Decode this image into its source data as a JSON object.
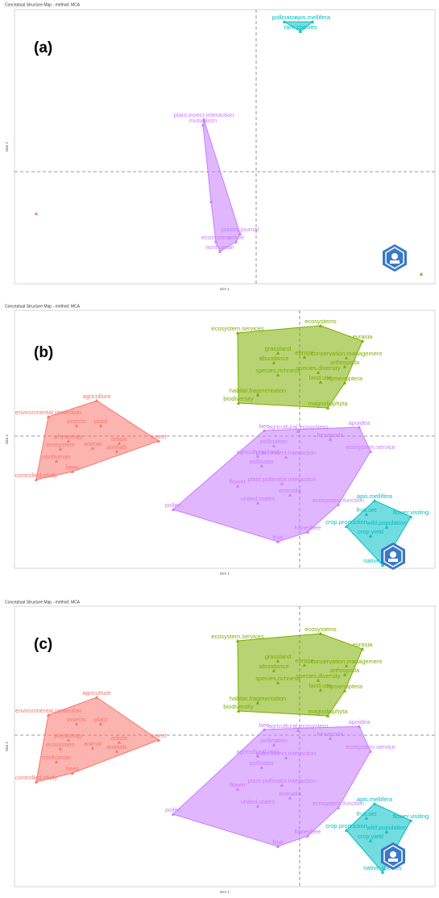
{
  "chart_data": [
    {
      "type": "scatter",
      "panel_label": "(a)",
      "title": "Conceptual Structure Map - method: MCA",
      "x_label": "Dim 1",
      "y_label": "Dim 2",
      "xlim": [
        -3.0,
        2.22
      ],
      "ylim": [
        -1.39,
        2.01
      ],
      "series": [
        {
          "color": "#c77cff",
          "x": [
            -0.65,
            -0.66,
            -0.56,
            -0.2,
            -0.25,
            -0.5,
            -0.45
          ],
          "y": [
            0.65,
            0.58,
            -0.37,
            -0.77,
            -0.87,
            -0.87,
            -0.99
          ],
          "labels": [
            "plant.insect.interaction",
            "mutualism",
            null,
            "priority.journal",
            "article",
            "ecosystem",
            "nonhuman"
          ]
        },
        {
          "color": "#00bfc4",
          "x": [
            0.35,
            0.7,
            0.55
          ],
          "y": [
            1.86,
            1.86,
            1.74
          ],
          "labels": [
            "pollinator",
            "apis.mellifera",
            "rare.species"
          ]
        },
        {
          "color": "#f8766d",
          "x": [
            -2.73
          ],
          "y": [
            -0.52
          ],
          "labels": [
            null
          ]
        },
        {
          "color": "#7cae00",
          "x": [
            2.05
          ],
          "y": [
            -1.27
          ],
          "labels": [
            null
          ]
        }
      ]
    },
    {
      "type": "scatter",
      "panel_label": "(b)",
      "title": "Conceptual Structure Map - method: MCA",
      "x_label": "Dim 1",
      "y_label": "Dim 2",
      "xlim": [
        -3.54,
        1.68
      ],
      "ylim": [
        -1.64,
        1.56
      ],
      "series": [
        {
          "color": "#7cae00",
          "x": [
            -0.77,
            0.26,
            0.78,
            0.58,
            0.56,
            -0.27,
            0.06,
            -0.32,
            0.23,
            -0.27,
            0.26,
            0.56,
            -0.52,
            -0.76,
            0.35
          ],
          "y": [
            1.28,
            1.37,
            1.18,
            0.97,
            0.86,
            1.03,
            0.98,
            0.91,
            0.79,
            0.76,
            0.67,
            0.66,
            0.51,
            0.41,
            0.35
          ],
          "labels": [
            "ecosystem.services",
            "ecosystems",
            "eurasia",
            "conservation.management",
            "arthropoda",
            "grassland",
            "europe",
            "abundance",
            "species.diversity",
            "species.richness",
            "land.use",
            "hymenoptera",
            "habitat.fragmentation",
            "biodiversity",
            "magnoliophyta"
          ]
        },
        {
          "color": "#f8766d",
          "x": [
            -2.52,
            -3.12,
            -2.77,
            -2.47,
            -1.75,
            -2.87,
            -2.24,
            -2.97,
            -2.57,
            -2.27,
            -3.02,
            -3.27,
            -2.82
          ],
          "y": [
            0.44,
            0.24,
            0.13,
            0.13,
            -0.06,
            -0.06,
            -0.09,
            -0.16,
            -0.15,
            -0.19,
            -0.31,
            -0.54,
            -0.44
          ],
          "labels": [
            "agriculture",
            "environmental.protection",
            "insects",
            "plant",
            "insect",
            "physiology",
            "article",
            "ecosystem",
            "animal",
            "animals",
            "nonhuman",
            "controlled.study",
            "bees"
          ]
        },
        {
          "color": "#c77cff",
          "x": [
            -0.44,
            -0.02,
            0.74,
            0.38,
            -0.32,
            0.88,
            -0.52,
            -0.17,
            -0.47,
            -0.22,
            -0.77,
            -0.12,
            -0.52,
            -1.57,
            0.48,
            0.1,
            -0.27
          ],
          "y": [
            0.07,
            0.06,
            0.11,
            -0.04,
            -0.12,
            -0.19,
            -0.25,
            -0.26,
            -0.37,
            -0.59,
            -0.62,
            -0.73,
            -0.83,
            -0.91,
            -0.85,
            -1.19,
            -1.31
          ],
          "labels": [
            "bee",
            "agricultural.ecosystem",
            "apoidea",
            "hexapoda",
            "pollination",
            "ecosystem.service",
            "agricultural.land",
            "plant.insect.interaction",
            "pollinator",
            "plant.pollinator.interaction",
            "flower",
            "animalia",
            "united.states",
            "pollen",
            "ecosystem.function",
            "honeybee",
            "fruit"
          ]
        },
        {
          "color": "#00bfc4",
          "x": [
            0.93,
            1.38,
            0.83,
            0.58,
            1.08,
            0.88,
            1.03
          ],
          "y": [
            -0.8,
            -1.0,
            -0.97,
            -1.12,
            -1.13,
            -1.24,
            -1.6
          ],
          "labels": [
            "apis.mellifera",
            "flower.visiting",
            "fruit.set",
            "crop.production",
            "wild.population",
            "crop.yield",
            "native.species"
          ]
        }
      ]
    },
    {
      "type": "scatter",
      "panel_label": "(c)",
      "title": "Conceptual Structure Map - method: MCA",
      "x_label": "Dim 1",
      "y_label": "Dim 2",
      "xlim": [
        -3.54,
        1.68
      ],
      "ylim": [
        -1.88,
        1.6
      ],
      "series": [
        {
          "color": "#7cae00",
          "x": [
            -0.77,
            0.26,
            0.78,
            0.58,
            0.56,
            -0.27,
            0.06,
            -0.32,
            0.23,
            -0.27,
            0.26,
            0.56,
            -0.52,
            -0.76,
            0.35
          ],
          "y": [
            1.17,
            1.26,
            1.07,
            0.86,
            0.75,
            0.92,
            0.87,
            0.8,
            0.68,
            0.65,
            0.56,
            0.55,
            0.4,
            0.3,
            0.24
          ],
          "labels": [
            "ecosystem.services",
            "ecosystems",
            "eurasia",
            "conservation.management",
            "arthropoda",
            "grassland",
            "europe",
            "abundance",
            "species.diversity",
            "species.richness",
            "land.use",
            "hymenoptera",
            "habitat.fragmentation",
            "biodiversity",
            "magnoliophyta"
          ]
        },
        {
          "color": "#f8766d",
          "x": [
            -2.52,
            -3.12,
            -2.77,
            -2.47,
            -1.75,
            -2.87,
            -2.24,
            -2.97,
            -2.57,
            -2.27,
            -3.02,
            -3.27,
            -2.82
          ],
          "y": [
            0.47,
            0.25,
            0.14,
            0.14,
            -0.06,
            -0.06,
            -0.09,
            -0.17,
            -0.16,
            -0.2,
            -0.33,
            -0.58,
            -0.47
          ],
          "labels": [
            "agriculture",
            "environmental.protection",
            "insects",
            "plant",
            "insect",
            "physiology",
            "article",
            "ecosystem",
            "animal",
            "animals",
            "nonhuman",
            "controlled.study",
            "bees"
          ]
        },
        {
          "color": "#c77cff",
          "x": [
            -0.44,
            -0.02,
            0.74,
            0.38,
            -0.32,
            0.88,
            -0.52,
            -0.17,
            -0.47,
            -0.22,
            -0.77,
            -0.12,
            -0.52,
            -1.57,
            0.48,
            0.1,
            -0.27
          ],
          "y": [
            0.07,
            0.06,
            0.11,
            -0.04,
            -0.12,
            -0.2,
            -0.26,
            -0.28,
            -0.4,
            -0.62,
            -0.67,
            -0.78,
            -0.88,
            -0.98,
            -0.9,
            -1.25,
            -1.38
          ],
          "labels": [
            "bee",
            "agricultural.ecosystem",
            "apoidea",
            "hexapoda",
            "pollination",
            "ecosystem.service",
            "agricultural.land",
            "plant.insect.interaction",
            "pollinator",
            "plant.pollinator.interaction",
            "flower",
            "animalia",
            "united.states",
            "pollen",
            "ecosystem.function",
            "honeybee",
            "fruit"
          ]
        },
        {
          "color": "#00bfc4",
          "x": [
            0.93,
            1.38,
            0.83,
            0.58,
            1.08,
            0.88,
            1.03
          ],
          "y": [
            -0.85,
            -1.06,
            -1.03,
            -1.18,
            -1.2,
            -1.31,
            -1.7
          ],
          "labels": [
            "apis.mellifera",
            "flower.visiting",
            "fruit.set",
            "crop.production",
            "wild.population",
            "crop.yield",
            "native.species"
          ]
        }
      ]
    }
  ]
}
